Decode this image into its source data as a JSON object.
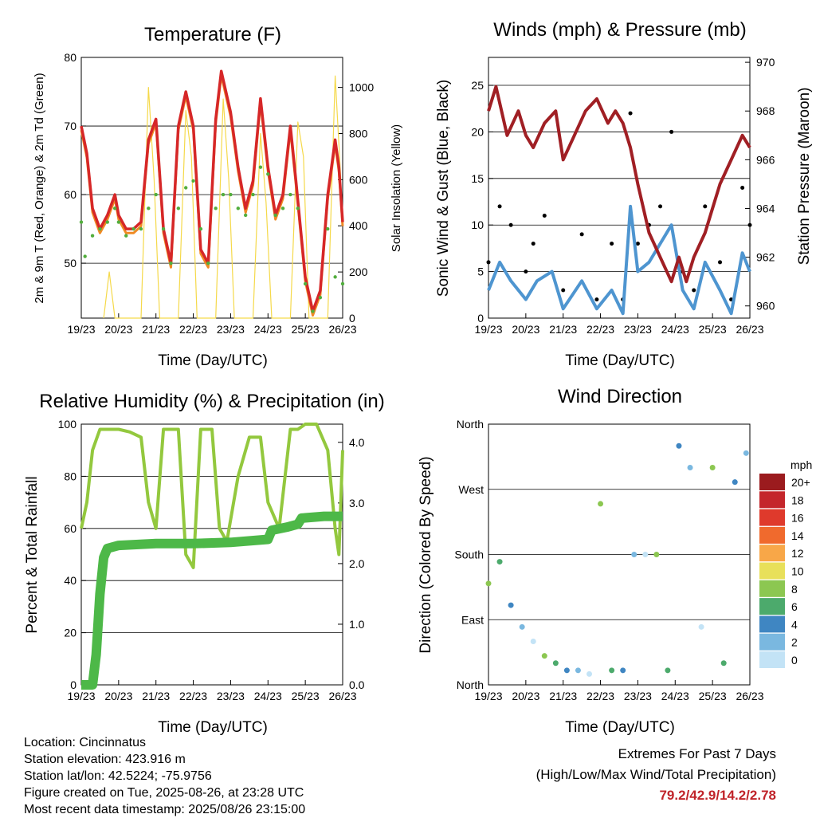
{
  "colors": {
    "t_red": "#d62728",
    "t_orange": "#f08a24",
    "td_green": "#52ae3d",
    "solar_yellow": "#f5d94a",
    "gust_black": "#000000",
    "wind_blue": "#4e95d0",
    "pressure_maroon": "#a01f24",
    "rh_lightgreen": "#93c83e",
    "precip_green": "#4db848"
  },
  "x_ticks": [
    "19/23",
    "20/23",
    "21/23",
    "22/23",
    "23/23",
    "24/23",
    "25/23",
    "26/23"
  ],
  "panels": {
    "temperature": {
      "title": "Temperature (F)",
      "xlabel": "Time (Day/UTC)",
      "ylabel": "2m & 9m T (Red, Orange) & 2m Td (Green)",
      "y2label": "Solar Insolation (Yellow)",
      "yticks": [
        "80",
        "70",
        "60",
        "50"
      ],
      "y2ticks": [
        "1000",
        "800",
        "600",
        "400",
        "200",
        "0"
      ]
    },
    "winds": {
      "title": "Winds (mph) & Pressure (mb)",
      "xlabel": "Time (Day/UTC)",
      "ylabel": "Sonic Wind & Gust (Blue, Black)",
      "y2label": "Station Pressure (Maroon)",
      "yticks": [
        "25",
        "20",
        "15",
        "10",
        "5",
        "0"
      ],
      "y2ticks": [
        "970",
        "968",
        "966",
        "964",
        "962",
        "960"
      ]
    },
    "humidity": {
      "title": "Relative Humidity (%) & Precipitation (in)",
      "xlabel": "Time (Day/UTC)",
      "ylabel": "Percent & Total Rainfall",
      "yticks": [
        "100",
        "80",
        "60",
        "40",
        "20",
        "0"
      ],
      "y2ticks": [
        "4.0",
        "3.0",
        "2.0",
        "1.0",
        "0.0"
      ]
    },
    "direction": {
      "title": "Wind Direction",
      "xlabel": "Time (Day/UTC)",
      "ylabel": "Direction (Colored By Speed)",
      "yticks": [
        "North",
        "West",
        "South",
        "East",
        "North"
      ],
      "legend_title": "mph",
      "legend_labels": [
        "20+",
        "18",
        "16",
        "14",
        "12",
        "10",
        "8",
        "6",
        "4",
        "2",
        "0"
      ],
      "legend_colors": [
        "#9b1b1e",
        "#c4262b",
        "#df3a2c",
        "#f06a2d",
        "#f8a748",
        "#e8e05a",
        "#8cc751",
        "#4caa6c",
        "#3f86c2",
        "#7ab8e0",
        "#c3e3f6"
      ]
    }
  },
  "footer": {
    "location": "Location: Cincinnatus",
    "elevation": "Station elevation: 423.916 m",
    "latlon": "Station lat/lon: 42.5224; -75.9756",
    "created": "Figure created on Tue, 2025-08-26, at 23:28 UTC",
    "recent": "Most recent data timestamp: 2025/08/26 23:15:00"
  },
  "extremes": {
    "title": "Extremes For Past 7 Days",
    "subtitle": "(High/Low/Max Wind/Total Precipitation)",
    "values": "79.2/42.9/14.2/2.78"
  },
  "chart_data": [
    {
      "type": "line",
      "title": "Temperature (F)",
      "x": [
        "19/23",
        "20/23",
        "21/23",
        "22/23",
        "23/23",
        "24/23",
        "25/23",
        "26/23"
      ],
      "ylim": [
        42,
        80
      ],
      "y2lim": [
        0,
        1130
      ],
      "series": [
        {
          "name": "2m T",
          "x": [
            0,
            0.15,
            0.3,
            0.5,
            0.7,
            0.9,
            1.0,
            1.2,
            1.4,
            1.6,
            1.8,
            2.0,
            2.2,
            2.4,
            2.6,
            2.8,
            3.0,
            3.2,
            3.4,
            3.6,
            3.75,
            4.0,
            4.2,
            4.4,
            4.6,
            4.8,
            5.0,
            5.2,
            5.4,
            5.6,
            5.75,
            6.0,
            6.2,
            6.4,
            6.6,
            6.8,
            6.9,
            7.0
          ],
          "values": [
            70,
            66,
            58,
            55,
            57,
            60,
            57,
            55,
            55,
            56,
            68,
            71,
            55,
            50,
            70,
            75,
            70,
            52,
            50,
            71,
            78,
            72,
            64,
            58,
            62,
            74,
            64,
            57,
            60,
            70,
            62,
            48,
            43,
            46,
            60,
            68,
            64,
            56
          ]
        },
        {
          "name": "Td",
          "x": [
            0,
            0.1,
            0.3,
            0.5,
            0.7,
            0.9,
            1.0,
            1.2,
            1.4,
            1.6,
            1.8,
            2.0,
            2.2,
            2.4,
            2.6,
            2.8,
            3.0,
            3.2,
            3.4,
            3.6,
            3.8,
            4.0,
            4.2,
            4.4,
            4.6,
            4.8,
            5.0,
            5.2,
            5.4,
            5.6,
            5.8,
            6.0,
            6.2,
            6.4,
            6.6,
            6.8,
            7.0
          ],
          "values": [
            56,
            51,
            54,
            55,
            56,
            58,
            56,
            54,
            55,
            55,
            58,
            60,
            55,
            50,
            58,
            61,
            62,
            55,
            50,
            58,
            60,
            60,
            58,
            57,
            60,
            64,
            63,
            57,
            58,
            60,
            58,
            47,
            43,
            45,
            55,
            48,
            47
          ]
        },
        {
          "name": "Solar",
          "axis": "y2",
          "x": [
            0.6,
            0.75,
            0.9,
            1.6,
            1.8,
            1.95,
            2.1,
            2.6,
            2.8,
            2.95,
            3.1,
            3.6,
            3.8,
            3.95,
            4.1,
            4.6,
            4.8,
            4.95,
            5.1,
            5.6,
            5.8,
            5.95,
            6.1,
            6.6,
            6.8,
            6.95
          ],
          "values": [
            0,
            200,
            0,
            0,
            1000,
            600,
            0,
            0,
            900,
            700,
            0,
            0,
            950,
            600,
            0,
            0,
            800,
            500,
            0,
            0,
            850,
            700,
            0,
            0,
            1050,
            600
          ]
        }
      ]
    },
    {
      "type": "scatter",
      "title": "Winds (mph) & Pressure (mb)",
      "x": [
        "19/23",
        "20/23",
        "21/23",
        "22/23",
        "23/23",
        "24/23",
        "25/23",
        "26/23"
      ],
      "ylim": [
        0,
        28
      ],
      "y2lim": [
        959.5,
        970.2
      ],
      "series": [
        {
          "name": "Gust",
          "x": [
            0,
            0.3,
            0.6,
            1.0,
            1.2,
            1.5,
            2.0,
            2.5,
            2.9,
            3.3,
            3.6,
            3.8,
            4.0,
            4.3,
            4.6,
            4.9,
            5.2,
            5.5,
            5.8,
            6.2,
            6.5,
            6.8,
            7.0
          ],
          "values": [
            6,
            12,
            10,
            5,
            8,
            11,
            3,
            9,
            2,
            8,
            2,
            22,
            8,
            10,
            12,
            20,
            5,
            3,
            12,
            6,
            2,
            14,
            10
          ]
        },
        {
          "name": "Wind",
          "x": [
            0,
            0.3,
            0.6,
            1.0,
            1.3,
            1.7,
            2.0,
            2.5,
            2.9,
            3.3,
            3.6,
            3.8,
            4.0,
            4.3,
            4.6,
            4.9,
            5.2,
            5.5,
            5.8,
            6.2,
            6.5,
            6.8,
            7.0
          ],
          "values": [
            3,
            6,
            4,
            2,
            4,
            5,
            1,
            4,
            1,
            3,
            0.5,
            12,
            5,
            6,
            8,
            10,
            3,
            1,
            6,
            3,
            0.5,
            7,
            5
          ]
        },
        {
          "name": "Pressure",
          "axis": "y2",
          "x": [
            0,
            0.2,
            0.5,
            0.8,
            1.0,
            1.2,
            1.5,
            1.8,
            2.0,
            2.3,
            2.6,
            2.9,
            3.2,
            3.4,
            3.6,
            3.8,
            4.0,
            4.3,
            4.6,
            4.9,
            5.1,
            5.3,
            5.5,
            5.8,
            6.0,
            6.2,
            6.5,
            6.8,
            7.0
          ],
          "values": [
            968,
            969,
            967,
            968,
            967,
            966.5,
            967.5,
            968,
            966,
            967,
            968,
            968.5,
            967.5,
            968,
            967.5,
            966.5,
            965,
            963,
            962,
            961,
            962,
            961,
            962,
            963,
            964,
            965,
            966,
            967,
            966.5
          ]
        }
      ]
    },
    {
      "type": "line",
      "title": "Relative Humidity (%) & Precipitation (in)",
      "x": [
        "19/23",
        "20/23",
        "21/23",
        "22/23",
        "23/23",
        "24/23",
        "25/23",
        "26/23"
      ],
      "ylim": [
        0,
        100
      ],
      "y2lim": [
        0,
        4.3
      ],
      "series": [
        {
          "name": "RH",
          "x": [
            0,
            0.15,
            0.3,
            0.5,
            0.7,
            1.0,
            1.3,
            1.6,
            1.8,
            2.0,
            2.2,
            2.4,
            2.6,
            2.8,
            3.0,
            3.2,
            3.5,
            3.7,
            3.9,
            4.2,
            4.5,
            4.8,
            5.0,
            5.3,
            5.6,
            5.8,
            6.0,
            6.3,
            6.6,
            6.8,
            6.9,
            7.0
          ],
          "values": [
            60,
            70,
            90,
            98,
            98,
            98,
            97,
            95,
            70,
            60,
            98,
            98,
            98,
            50,
            45,
            98,
            98,
            60,
            55,
            80,
            95,
            95,
            70,
            60,
            98,
            98,
            100,
            100,
            90,
            60,
            50,
            90
          ]
        },
        {
          "name": "Precip",
          "axis": "y2",
          "x": [
            0,
            0.3,
            0.4,
            0.5,
            0.6,
            0.7,
            1.0,
            2.0,
            3.0,
            4.0,
            5.0,
            5.1,
            5.5,
            5.8,
            5.9,
            6.5,
            7.0
          ],
          "values": [
            0,
            0,
            0.5,
            1.5,
            2.1,
            2.25,
            2.3,
            2.33,
            2.33,
            2.35,
            2.4,
            2.55,
            2.6,
            2.65,
            2.75,
            2.78,
            2.78
          ]
        }
      ]
    },
    {
      "type": "scatter",
      "title": "Wind Direction",
      "x": [
        "19/23",
        "20/23",
        "21/23",
        "22/23",
        "23/23",
        "24/23",
        "25/23",
        "26/23"
      ],
      "yticks": [
        "North",
        "West",
        "South",
        "East",
        "North"
      ],
      "series": [
        {
          "name": "Direction (deg)",
          "x": [
            0,
            0.3,
            0.6,
            0.9,
            1.2,
            1.5,
            1.8,
            2.1,
            2.4,
            2.7,
            3.0,
            3.3,
            3.6,
            3.9,
            4.2,
            4.5,
            4.8,
            5.1,
            5.4,
            5.7,
            6.0,
            6.3,
            6.6,
            6.9
          ],
          "values": [
            140,
            170,
            110,
            80,
            60,
            40,
            30,
            20,
            20,
            15,
            250,
            20,
            20,
            180,
            180,
            180,
            20,
            330,
            300,
            80,
            300,
            30,
            280,
            320
          ]
        }
      ]
    }
  ]
}
